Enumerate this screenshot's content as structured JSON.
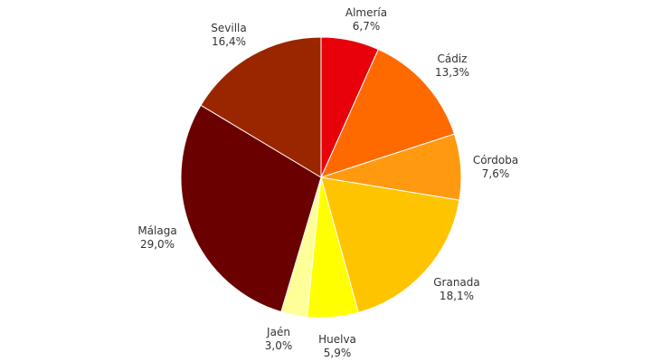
{
  "chart_data": {
    "type": "pie",
    "slices": [
      {
        "name": "Almería",
        "value": 6.7,
        "label": "6,7%",
        "color": "#e8000a"
      },
      {
        "name": "Cádiz",
        "value": 13.3,
        "label": "13,3%",
        "color": "#ff6a00"
      },
      {
        "name": "Córdoba",
        "value": 7.6,
        "label": "7,6%",
        "color": "#ff9a10"
      },
      {
        "name": "Granada",
        "value": 18.1,
        "label": "18,1%",
        "color": "#ffc400"
      },
      {
        "name": "Huelva",
        "value": 5.9,
        "label": "5,9%",
        "color": "#ffff00"
      },
      {
        "name": "Jaén",
        "value": 3.0,
        "label": "3,0%",
        "color": "#ffff99"
      },
      {
        "name": "Málaga",
        "value": 29.0,
        "label": "29,0%",
        "color": "#6b0000"
      },
      {
        "name": "Sevilla",
        "value": 16.4,
        "label": "16,4%",
        "color": "#9a2600"
      }
    ]
  }
}
